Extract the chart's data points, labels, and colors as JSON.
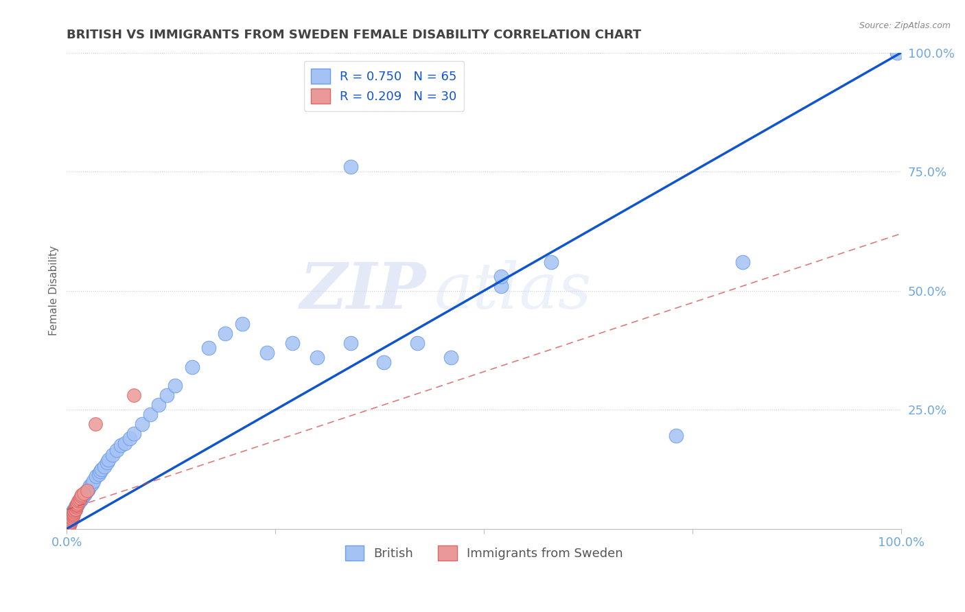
{
  "title": "BRITISH VS IMMIGRANTS FROM SWEDEN FEMALE DISABILITY CORRELATION CHART",
  "source_text": "Source: ZipAtlas.com",
  "ylabel": "Female Disability",
  "watermark_zip": "ZIP",
  "watermark_atlas": "atlas",
  "legend_r1": "R = 0.750",
  "legend_n1": "N = 65",
  "legend_r2": "R = 0.209",
  "legend_n2": "N = 30",
  "xlim": [
    0.0,
    1.0
  ],
  "ylim": [
    0.0,
    1.0
  ],
  "blue_color": "#a4c2f4",
  "blue_edge_color": "#6d9eeb",
  "pink_color": "#ea9999",
  "pink_edge_color": "#e06666",
  "blue_line_color": "#1155cc",
  "pink_line_color": "#cc4444",
  "grid_color": "#cccccc",
  "title_color": "#434343",
  "axis_tick_color": "#6fa8dc",
  "ylabel_color": "#666666",
  "blue_x": [
    0.003,
    0.004,
    0.005,
    0.005,
    0.006,
    0.007,
    0.007,
    0.008,
    0.009,
    0.01,
    0.01,
    0.011,
    0.012,
    0.013,
    0.014,
    0.015,
    0.016,
    0.017,
    0.018,
    0.019,
    0.02,
    0.021,
    0.022,
    0.023,
    0.025,
    0.026,
    0.028,
    0.03,
    0.032,
    0.035,
    0.038,
    0.04,
    0.042,
    0.045,
    0.048,
    0.05,
    0.055,
    0.06,
    0.065,
    0.07,
    0.075,
    0.08,
    0.09,
    0.1,
    0.11,
    0.12,
    0.13,
    0.15,
    0.17,
    0.19,
    0.21,
    0.24,
    0.27,
    0.3,
    0.34,
    0.38,
    0.42,
    0.46,
    0.52,
    0.58,
    0.34,
    0.52,
    0.73,
    0.81,
    0.995
  ],
  "blue_y": [
    0.02,
    0.025,
    0.022,
    0.03,
    0.028,
    0.035,
    0.032,
    0.038,
    0.04,
    0.042,
    0.045,
    0.048,
    0.05,
    0.052,
    0.055,
    0.058,
    0.06,
    0.062,
    0.065,
    0.068,
    0.07,
    0.072,
    0.075,
    0.078,
    0.082,
    0.085,
    0.09,
    0.095,
    0.1,
    0.11,
    0.115,
    0.12,
    0.125,
    0.13,
    0.14,
    0.145,
    0.155,
    0.165,
    0.175,
    0.18,
    0.19,
    0.2,
    0.22,
    0.24,
    0.26,
    0.28,
    0.3,
    0.34,
    0.38,
    0.41,
    0.43,
    0.37,
    0.39,
    0.36,
    0.39,
    0.35,
    0.39,
    0.36,
    0.51,
    0.56,
    0.76,
    0.53,
    0.195,
    0.56,
    1.0
  ],
  "pink_x": [
    0.002,
    0.003,
    0.004,
    0.004,
    0.005,
    0.005,
    0.006,
    0.006,
    0.007,
    0.007,
    0.008,
    0.008,
    0.009,
    0.009,
    0.01,
    0.01,
    0.011,
    0.011,
    0.012,
    0.012,
    0.013,
    0.014,
    0.015,
    0.016,
    0.017,
    0.018,
    0.02,
    0.024,
    0.034,
    0.08
  ],
  "pink_y": [
    0.005,
    0.008,
    0.01,
    0.012,
    0.015,
    0.018,
    0.02,
    0.022,
    0.025,
    0.028,
    0.03,
    0.032,
    0.035,
    0.038,
    0.04,
    0.042,
    0.045,
    0.048,
    0.05,
    0.052,
    0.055,
    0.058,
    0.06,
    0.065,
    0.068,
    0.072,
    0.075,
    0.08,
    0.22,
    0.28
  ],
  "blue_line_x0": 0.0,
  "blue_line_y0": 0.0,
  "blue_line_x1": 1.0,
  "blue_line_y1": 1.0,
  "pink_line_x0": 0.0,
  "pink_line_y0": 0.04,
  "pink_line_x1": 1.0,
  "pink_line_y1": 0.62
}
